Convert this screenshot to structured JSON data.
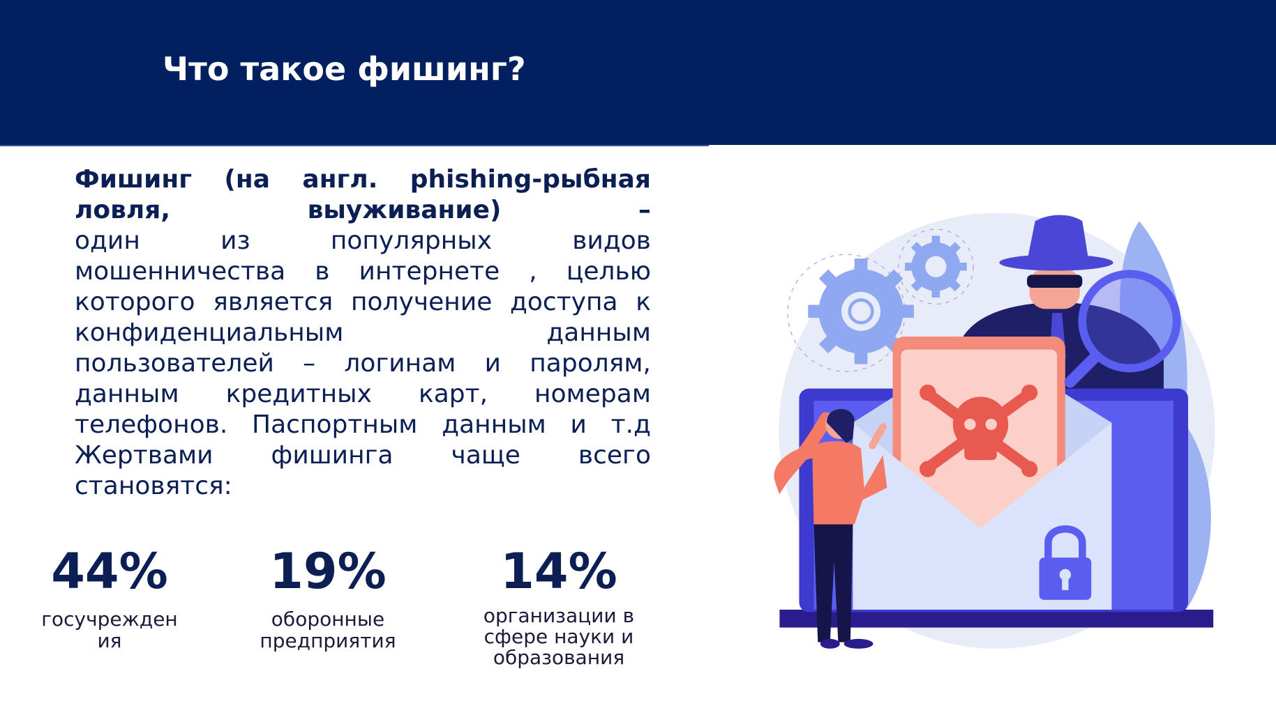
{
  "header": {
    "title": "Что такое фишинг?"
  },
  "paragraph": {
    "lead": "Фишинг (на англ. phishing-рыбная ловля, выуживание) –",
    "text": "один из популярных видов мошенничества в интернете , целью которого является получение доступа к конфиденциальным данным пользователей – логинам и паролям, данным кредитных карт, номерам телефонов. Паспортным данным и т.д Жертвами фишинга чаще всего становятся:"
  },
  "stats": [
    {
      "value": "44%",
      "label": "госучреждения"
    },
    {
      "value": "19%",
      "label": "оборонные предприятия"
    },
    {
      "value": "14%",
      "label": "организации в сфере науки и образования"
    }
  ]
}
